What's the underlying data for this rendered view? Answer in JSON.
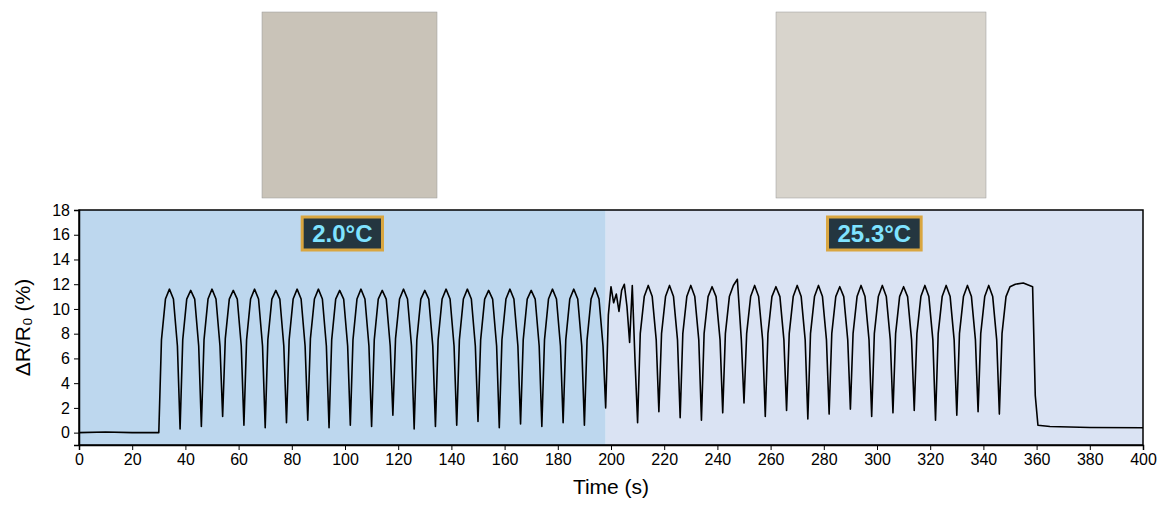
{
  "chart_data": {
    "type": "line",
    "x_label": "Time (s)",
    "y_label": "ΔR/R₀ (%)",
    "xlim": [
      0,
      400
    ],
    "xticks": [
      0,
      20,
      40,
      60,
      80,
      100,
      120,
      140,
      160,
      180,
      200,
      220,
      240,
      260,
      280,
      300,
      320,
      340,
      360,
      380,
      400
    ],
    "ylim": [
      -1,
      18
    ],
    "yticks": [
      0,
      2,
      4,
      6,
      8,
      10,
      12,
      14,
      16,
      18
    ],
    "color": "#000000",
    "shaded_regions": [
      {
        "start": 0,
        "end": 198,
        "color": "#bdd7ee",
        "label": "2.0°C"
      },
      {
        "start": 198,
        "end": 400,
        "color": "#dae3f3",
        "label": "25.3°C"
      }
    ],
    "x": [
      0,
      10,
      20,
      29.6,
      30,
      31,
      32.5,
      34,
      35.5,
      37,
      38,
      39,
      40.5,
      42,
      43.5,
      45,
      46,
      47,
      48.5,
      50,
      51.5,
      53,
      54,
      55,
      56.5,
      58,
      59.5,
      61,
      62,
      63,
      64.5,
      66,
      67.5,
      69,
      70,
      71,
      72.5,
      74,
      75.5,
      77,
      78,
      79,
      80.5,
      82,
      83.5,
      85,
      86,
      87,
      88.5,
      90,
      91.5,
      93,
      94,
      95,
      96.5,
      98,
      99.5,
      101,
      102,
      103,
      104.5,
      106,
      107.5,
      109,
      110,
      111,
      112.5,
      114,
      115.5,
      117,
      118,
      119,
      120.5,
      122,
      123.5,
      125,
      126,
      127,
      128.5,
      130,
      131.5,
      133,
      134,
      135,
      136.5,
      138,
      139.5,
      141,
      142,
      143,
      144.5,
      146,
      147.5,
      149,
      150,
      151,
      152.5,
      154,
      155.5,
      157,
      158,
      159,
      160.5,
      162,
      163.5,
      165,
      166,
      167,
      168.5,
      170,
      171.5,
      173,
      174,
      175,
      176.5,
      178,
      179.5,
      181,
      182,
      183,
      184.5,
      186,
      187.5,
      189,
      190,
      191,
      192.5,
      194,
      195.5,
      197,
      198,
      199,
      200,
      201,
      202,
      203,
      204,
      205,
      206,
      207,
      208,
      209,
      210,
      211,
      212.5,
      214,
      215.5,
      217,
      218,
      219,
      220.5,
      222,
      223.5,
      225,
      226,
      227,
      228.5,
      230,
      231.5,
      233,
      234,
      235,
      236.5,
      238,
      239.5,
      241,
      242,
      243,
      244.5,
      246,
      247.5,
      249,
      250,
      251,
      252.5,
      254,
      255.5,
      257,
      258,
      259,
      260.5,
      262,
      263.5,
      265,
      266,
      267,
      268.5,
      270,
      271.5,
      273,
      274,
      275,
      276.5,
      278,
      279.5,
      281,
      282,
      283,
      284.5,
      286,
      287.5,
      289,
      290,
      291,
      292.5,
      294,
      295.5,
      297,
      298,
      299,
      300.5,
      302,
      303.5,
      305,
      306,
      307,
      308.5,
      310,
      311.5,
      313,
      314,
      315,
      316.5,
      318,
      319.5,
      321,
      322,
      323,
      324.5,
      326,
      327.5,
      329,
      330,
      331,
      332.5,
      334,
      335.5,
      337,
      338,
      339,
      340.5,
      342,
      343.5,
      345,
      346,
      347,
      348.5,
      350,
      352,
      355,
      358.5,
      359.5,
      360.5,
      365,
      380,
      400
    ],
    "values": [
      0,
      0.05,
      0,
      0,
      0,
      7.5,
      10.8,
      11.6,
      10.8,
      7.0,
      0.3,
      7.5,
      10.8,
      11.5,
      10.8,
      7.0,
      0.5,
      7.5,
      10.8,
      11.6,
      10.8,
      7.0,
      1.3,
      7.6,
      10.8,
      11.5,
      10.8,
      7.0,
      0.6,
      7.5,
      10.8,
      11.6,
      10.8,
      7.0,
      0.4,
      7.5,
      10.8,
      11.5,
      10.8,
      7.0,
      0.8,
      7.5,
      10.8,
      11.6,
      10.8,
      7.0,
      1.0,
      7.6,
      10.8,
      11.6,
      10.8,
      7.0,
      0.4,
      7.5,
      10.8,
      11.5,
      10.8,
      7.0,
      0.6,
      7.5,
      10.8,
      11.6,
      10.8,
      7.0,
      0.5,
      7.5,
      10.8,
      11.5,
      10.8,
      7.0,
      1.4,
      7.6,
      10.8,
      11.6,
      10.8,
      7.0,
      0.3,
      7.5,
      10.8,
      11.5,
      10.8,
      7.0,
      0.5,
      7.5,
      10.8,
      11.6,
      10.8,
      7.0,
      0.6,
      7.5,
      10.8,
      11.6,
      10.8,
      7.0,
      0.9,
      7.5,
      10.8,
      11.5,
      10.8,
      7.0,
      0.4,
      7.5,
      10.8,
      11.6,
      10.8,
      7.0,
      0.7,
      7.5,
      10.8,
      11.5,
      10.8,
      7.0,
      0.5,
      7.5,
      10.8,
      11.6,
      10.8,
      7.0,
      0.8,
      7.5,
      10.8,
      11.6,
      10.8,
      7.0,
      0.6,
      7.5,
      10.8,
      11.7,
      10.8,
      7.0,
      2.0,
      9.5,
      11.8,
      10.5,
      11.2,
      9.8,
      11.5,
      12.0,
      10.2,
      7.3,
      11.9,
      6.0,
      0.8,
      8.0,
      11.0,
      11.9,
      11.0,
      7.5,
      1.7,
      8.0,
      11.0,
      11.9,
      11.0,
      7.5,
      1.2,
      8.0,
      11.0,
      11.9,
      11.0,
      7.5,
      1.0,
      8.0,
      11.0,
      11.8,
      11.0,
      7.5,
      1.6,
      8.0,
      11.0,
      11.9,
      12.4,
      7.5,
      2.4,
      8.0,
      11.0,
      11.9,
      11.0,
      7.5,
      1.3,
      8.0,
      11.0,
      11.8,
      11.0,
      7.5,
      1.8,
      8.0,
      11.0,
      11.9,
      11.0,
      7.5,
      1.1,
      8.0,
      11.0,
      11.9,
      11.0,
      7.5,
      1.5,
      8.0,
      11.0,
      11.8,
      11.0,
      7.5,
      1.9,
      8.0,
      11.0,
      11.9,
      11.0,
      7.5,
      1.3,
      8.0,
      11.0,
      11.9,
      11.0,
      7.5,
      1.6,
      8.0,
      11.0,
      11.8,
      11.0,
      7.5,
      1.8,
      8.0,
      11.0,
      11.9,
      11.0,
      7.5,
      1.0,
      8.0,
      11.0,
      11.9,
      11.0,
      7.5,
      1.4,
      8.0,
      11.0,
      11.9,
      11.0,
      7.5,
      1.7,
      8.0,
      11.0,
      11.9,
      11.0,
      7.5,
      1.5,
      8.0,
      11.0,
      11.8,
      12.0,
      12.1,
      11.8,
      3.0,
      0.6,
      0.5,
      0.42,
      0.4
    ]
  }
}
